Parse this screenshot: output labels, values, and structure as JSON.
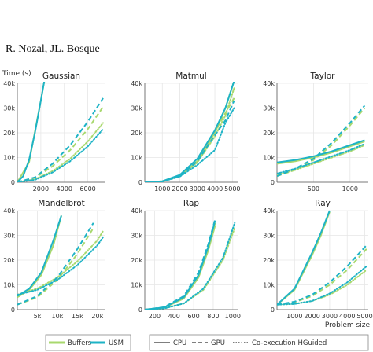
{
  "header": {
    "running_head": "R. Nozal, JL. Bosque"
  },
  "y_axis_label": "Time (s)",
  "x_axis_label": "Problem size",
  "legend": {
    "api_entries": [
      {
        "label": "Buffers",
        "color": "#a8d86e"
      },
      {
        "label": "USM",
        "color": "#1db3c6"
      }
    ],
    "device_entries": [
      {
        "label": "CPU",
        "dash": "solid"
      },
      {
        "label": "GPU",
        "dash": "dashed"
      },
      {
        "label": "Co-execution HGuided",
        "dash": "dotted"
      }
    ]
  },
  "colors": {
    "buffers": "#a8d86e",
    "usm": "#1db3c6"
  },
  "chart_data": [
    {
      "type": "line",
      "title": "Gaussian",
      "xlim": [
        0,
        7500
      ],
      "ylim": [
        0,
        40000
      ],
      "xticks": [
        2000,
        4000,
        6000
      ],
      "xtick_labels": [
        "2000",
        "4000",
        "6000"
      ],
      "yticks": [
        0,
        10000,
        20000,
        30000,
        40000
      ],
      "ytick_labels": [
        "0",
        "10k",
        "20k",
        "30k",
        "40k"
      ],
      "series": [
        {
          "api": "Buffers",
          "device": "CPU",
          "x": [
            0,
            1000,
            2000,
            2300
          ],
          "y": [
            0,
            8000,
            33000,
            41000
          ]
        },
        {
          "api": "Buffers",
          "device": "GPU",
          "x": [
            0,
            1500,
            3000,
            4500,
            6000,
            7300
          ],
          "y": [
            0,
            1800,
            6500,
            13000,
            21500,
            30500
          ]
        },
        {
          "api": "Buffers",
          "device": "Co-execution HGuided",
          "x": [
            0,
            1500,
            3000,
            4500,
            6000,
            7300
          ],
          "y": [
            0,
            1200,
            4500,
            9500,
            16500,
            24000
          ]
        },
        {
          "api": "USM",
          "device": "CPU",
          "x": [
            0,
            500,
            1000,
            1500,
            2000,
            2300
          ],
          "y": [
            0,
            2500,
            9000,
            20000,
            33000,
            41000
          ]
        },
        {
          "api": "USM",
          "device": "GPU",
          "x": [
            0,
            1500,
            3000,
            4500,
            6000,
            7300
          ],
          "y": [
            0,
            2000,
            7500,
            15000,
            24500,
            34000
          ]
        },
        {
          "api": "USM",
          "device": "Co-execution HGuided",
          "x": [
            0,
            1500,
            3000,
            4500,
            6000,
            7300
          ],
          "y": [
            0,
            1000,
            4000,
            8500,
            14500,
            21500
          ]
        }
      ]
    },
    {
      "type": "line",
      "title": "Matmul",
      "xlim": [
        0,
        5300
      ],
      "ylim": [
        0,
        40000
      ],
      "xticks": [
        1000,
        2000,
        3000,
        4000,
        5000
      ],
      "xtick_labels": [
        "1000",
        "2000",
        "3000",
        "4000",
        "5000"
      ],
      "yticks": [
        0,
        10000,
        20000,
        30000,
        40000
      ],
      "ytick_labels": [
        "0",
        "10k",
        "20k",
        "30k",
        "40k"
      ],
      "series": [
        {
          "api": "Buffers",
          "device": "CPU",
          "x": [
            0,
            1000,
            2000,
            3000,
            4000,
            4600,
            5100
          ],
          "y": [
            0,
            300,
            2500,
            8500,
            20000,
            30000,
            41000
          ]
        },
        {
          "api": "Buffers",
          "device": "GPU",
          "x": [
            0,
            1000,
            2000,
            3000,
            4000,
            4600,
            5100
          ],
          "y": [
            0,
            400,
            2800,
            9000,
            20500,
            28000,
            34000
          ]
        },
        {
          "api": "Buffers",
          "device": "Co-execution HGuided",
          "x": [
            0,
            1000,
            2000,
            3000,
            4000,
            4600,
            5100
          ],
          "y": [
            0,
            300,
            2500,
            8000,
            18500,
            27000,
            38000
          ]
        },
        {
          "api": "USM",
          "device": "CPU",
          "x": [
            0,
            1000,
            2000,
            3000,
            4000,
            4600,
            5100
          ],
          "y": [
            0,
            400,
            3000,
            9500,
            21000,
            30000,
            41000
          ]
        },
        {
          "api": "USM",
          "device": "GPU",
          "x": [
            0,
            1000,
            2000,
            3000,
            4000,
            4600,
            5100
          ],
          "y": [
            0,
            300,
            2500,
            8500,
            19000,
            25000,
            33000
          ]
        },
        {
          "api": "USM",
          "device": "Co-execution HGuided",
          "x": [
            0,
            1000,
            2000,
            3000,
            4000,
            4600,
            5100
          ],
          "y": [
            0,
            300,
            2300,
            7000,
            13000,
            24000,
            30000
          ]
        }
      ]
    },
    {
      "type": "line",
      "title": "Taylor",
      "xlim": [
        0,
        1250
      ],
      "ylim": [
        0,
        40000
      ],
      "xticks": [
        500,
        1000
      ],
      "xtick_labels": [
        "500",
        "1000"
      ],
      "yticks": [
        0,
        10000,
        20000,
        30000,
        40000
      ],
      "ytick_labels": [
        "0",
        "10k",
        "20k",
        "30k",
        "40k"
      ],
      "series": [
        {
          "api": "Buffers",
          "device": "CPU",
          "x": [
            0,
            250,
            500,
            750,
            1000,
            1200
          ],
          "y": [
            7500,
            8500,
            10000,
            12000,
            14500,
            16500
          ]
        },
        {
          "api": "Buffers",
          "device": "GPU",
          "x": [
            0,
            250,
            500,
            750,
            1000,
            1200
          ],
          "y": [
            2500,
            5000,
            9000,
            15000,
            23000,
            30000
          ]
        },
        {
          "api": "Buffers",
          "device": "Co-execution HGuided",
          "x": [
            0,
            250,
            500,
            750,
            1000,
            1200
          ],
          "y": [
            3000,
            5000,
            7500,
            10000,
            12500,
            15000
          ]
        },
        {
          "api": "USM",
          "device": "CPU",
          "x": [
            0,
            250,
            500,
            750,
            1000,
            1200
          ],
          "y": [
            8000,
            9000,
            10500,
            12500,
            15000,
            17000
          ]
        },
        {
          "api": "USM",
          "device": "GPU",
          "x": [
            0,
            250,
            500,
            750,
            1000,
            1200
          ],
          "y": [
            2500,
            5500,
            9500,
            16000,
            24000,
            31000
          ]
        },
        {
          "api": "USM",
          "device": "Co-execution HGuided",
          "x": [
            0,
            250,
            500,
            750,
            1000,
            1200
          ],
          "y": [
            3500,
            5500,
            8000,
            10500,
            13000,
            15500
          ]
        }
      ]
    },
    {
      "type": "line",
      "title": "Mandelbrot",
      "xlim": [
        0,
        22000
      ],
      "ylim": [
        0,
        40000
      ],
      "xticks": [
        5000,
        10000,
        15000,
        20000
      ],
      "xtick_labels": [
        "5k",
        "10k",
        "15k",
        "20k"
      ],
      "yticks": [
        0,
        10000,
        20000,
        30000,
        40000
      ],
      "ytick_labels": [
        "0",
        "10k",
        "20k",
        "30k",
        "40k"
      ],
      "series": [
        {
          "api": "Buffers",
          "device": "CPU",
          "x": [
            0,
            3000,
            6000,
            9000,
            11000
          ],
          "y": [
            5000,
            8000,
            14000,
            26000,
            38000
          ]
        },
        {
          "api": "Buffers",
          "device": "GPU",
          "x": [
            0,
            5000,
            10000,
            15000,
            19000
          ],
          "y": [
            2000,
            5000,
            12000,
            22500,
            33000
          ]
        },
        {
          "api": "Buffers",
          "device": "Co-execution HGuided",
          "x": [
            0,
            5000,
            10000,
            15000,
            20000,
            21500
          ],
          "y": [
            6000,
            8500,
            13000,
            19500,
            28000,
            32000
          ]
        },
        {
          "api": "USM",
          "device": "CPU",
          "x": [
            0,
            3000,
            6000,
            9000,
            11000
          ],
          "y": [
            5500,
            8500,
            15000,
            28000,
            38000
          ]
        },
        {
          "api": "USM",
          "device": "GPU",
          "x": [
            0,
            5000,
            10000,
            15000,
            19000
          ],
          "y": [
            2000,
            5500,
            13000,
            24500,
            35000
          ]
        },
        {
          "api": "USM",
          "device": "Co-execution HGuided",
          "x": [
            0,
            5000,
            10000,
            15000,
            20000,
            21500
          ],
          "y": [
            6000,
            8000,
            12000,
            18000,
            26000,
            29500
          ]
        }
      ]
    },
    {
      "type": "line",
      "title": "Rap",
      "xlim": [
        100,
        1050
      ],
      "ylim": [
        0,
        40000
      ],
      "xticks": [
        200,
        400,
        600,
        800,
        1000
      ],
      "xtick_labels": [
        "200",
        "400",
        "600",
        "800",
        "1000"
      ],
      "yticks": [
        0,
        10000,
        20000,
        30000,
        40000
      ],
      "ytick_labels": [
        "0",
        "10k",
        "20k",
        "30k",
        "40k"
      ],
      "series": [
        {
          "api": "Buffers",
          "device": "CPU",
          "x": [
            100,
            300,
            500,
            650,
            750,
            820
          ],
          "y": [
            0,
            800,
            4500,
            13000,
            24000,
            34000
          ]
        },
        {
          "api": "Buffers",
          "device": "GPU",
          "x": [
            100,
            300,
            500,
            650,
            750,
            820
          ],
          "y": [
            0,
            900,
            5000,
            14000,
            25000,
            35000
          ]
        },
        {
          "api": "Buffers",
          "device": "Co-execution HGuided",
          "x": [
            100,
            300,
            500,
            700,
            900,
            1020
          ],
          "y": [
            0,
            500,
            2500,
            8000,
            20000,
            33000
          ]
        },
        {
          "api": "USM",
          "device": "CPU",
          "x": [
            100,
            300,
            500,
            650,
            750,
            820
          ],
          "y": [
            0,
            900,
            5000,
            14000,
            25500,
            36000
          ]
        },
        {
          "api": "USM",
          "device": "GPU",
          "x": [
            100,
            300,
            500,
            650,
            750,
            820
          ],
          "y": [
            0,
            1000,
            5500,
            15000,
            26500,
            36500
          ]
        },
        {
          "api": "USM",
          "device": "Co-execution HGuided",
          "x": [
            100,
            300,
            500,
            700,
            900,
            1020
          ],
          "y": [
            0,
            500,
            2500,
            8500,
            21000,
            35000
          ]
        }
      ]
    },
    {
      "type": "line",
      "title": "Ray",
      "xlim": [
        0,
        5200
      ],
      "ylim": [
        0,
        40000
      ],
      "xticks": [
        1000,
        2000,
        3000,
        4000,
        5000
      ],
      "xtick_labels": [
        "1000",
        "2000",
        "3000",
        "4000",
        "5000"
      ],
      "yticks": [
        0,
        10000,
        20000,
        30000,
        40000
      ],
      "ytick_labels": [
        "0",
        "10k",
        "20k",
        "30k",
        "40k"
      ],
      "series": [
        {
          "api": "Buffers",
          "device": "CPU",
          "x": [
            0,
            1000,
            2000,
            2500,
            3000
          ],
          "y": [
            2000,
            8000,
            22000,
            30000,
            39500
          ]
        },
        {
          "api": "Buffers",
          "device": "GPU",
          "x": [
            0,
            1000,
            2000,
            3000,
            4000,
            5100
          ],
          "y": [
            2000,
            3000,
            5500,
            10000,
            16000,
            24500
          ]
        },
        {
          "api": "Buffers",
          "device": "Co-execution HGuided",
          "x": [
            0,
            1000,
            2000,
            3000,
            4000,
            5100
          ],
          "y": [
            2000,
            2300,
            3500,
            6000,
            10000,
            16000
          ]
        },
        {
          "api": "USM",
          "device": "CPU",
          "x": [
            0,
            1000,
            2000,
            2500,
            3000
          ],
          "y": [
            2000,
            8500,
            23000,
            31000,
            40000
          ]
        },
        {
          "api": "USM",
          "device": "GPU",
          "x": [
            0,
            1000,
            2000,
            3000,
            4000,
            5100
          ],
          "y": [
            2000,
            3200,
            6000,
            11000,
            17500,
            26000
          ]
        },
        {
          "api": "USM",
          "device": "Co-execution HGuided",
          "x": [
            0,
            1000,
            2000,
            3000,
            4000,
            5100
          ],
          "y": [
            2000,
            2300,
            3500,
            6500,
            11000,
            17500
          ]
        }
      ]
    }
  ]
}
